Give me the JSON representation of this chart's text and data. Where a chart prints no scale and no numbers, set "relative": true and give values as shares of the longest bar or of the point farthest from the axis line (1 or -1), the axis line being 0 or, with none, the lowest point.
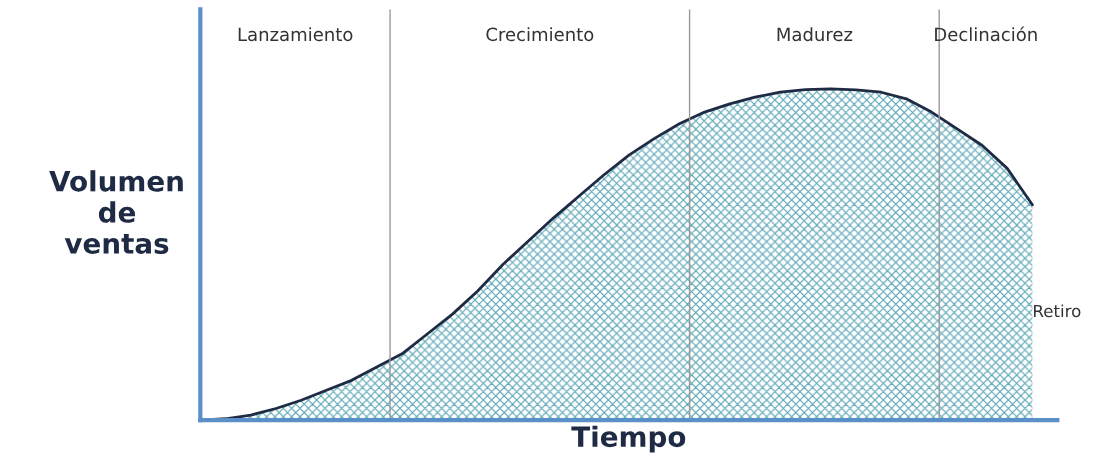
{
  "chart_data": {
    "type": "area",
    "relative": true,
    "xlabel": "Tiempo",
    "ylabel": "Volumen\nde\nventas",
    "categories": [
      null,
      null,
      null,
      null,
      null,
      null,
      null,
      null,
      null,
      null,
      null,
      null,
      null,
      null,
      null,
      null,
      null,
      null,
      null,
      null,
      null,
      null,
      null,
      null,
      null,
      null,
      null,
      null,
      null,
      null,
      null,
      null,
      null,
      null
    ],
    "series": [
      {
        "color": "#1f2a44",
        "values": [
          0,
          0.004,
          0.015,
          0.035,
          0.06,
          0.09,
          0.12,
          0.16,
          0.2,
          0.26,
          0.32,
          0.39,
          0.47,
          0.54,
          0.61,
          0.675,
          0.74,
          0.8,
          0.85,
          0.895,
          0.93,
          0.955,
          0.975,
          0.99,
          0.998,
          1.0,
          0.997,
          0.99,
          0.97,
          0.93,
          0.88,
          0.83,
          0.76,
          0.65
        ]
      }
    ],
    "annotations": [
      "Lanzamiento",
      "Crecimiento",
      "Madurez",
      "Declinación",
      "Retiro"
    ]
  }
}
